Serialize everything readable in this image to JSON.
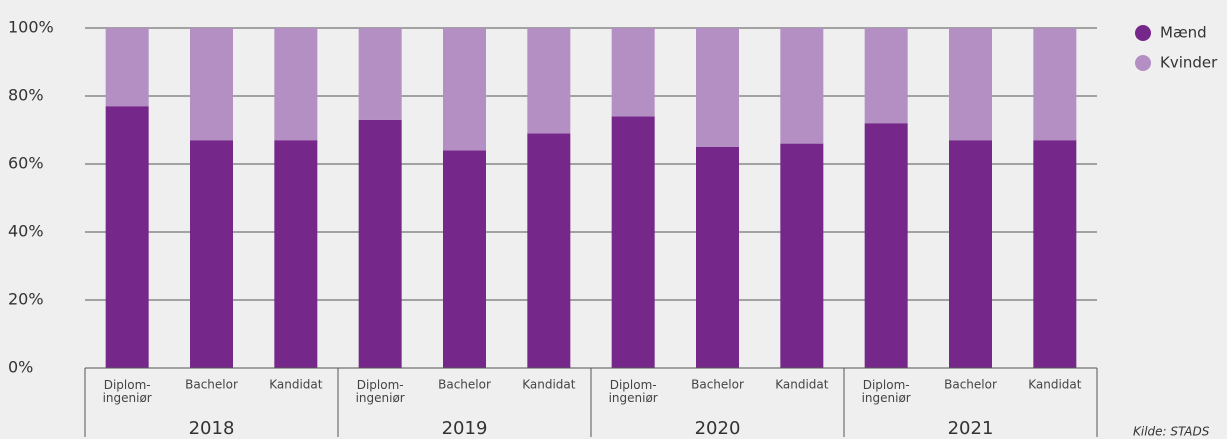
{
  "chart_data": {
    "type": "stacked_bar",
    "categories": [
      "Diplom-\ningeniør",
      "Bachelor",
      "Kandidat",
      "Diplom-\ningeniør",
      "Bachelor",
      "Kandidat",
      "Diplom-\ningeniør",
      "Bachelor",
      "Kandidat",
      "Diplom-\ningeniør",
      "Bachelor",
      "Kandidat"
    ],
    "groups": [
      "2018",
      "2019",
      "2020",
      "2021"
    ],
    "series": [
      {
        "name": "Mænd",
        "color": "#76288a",
        "values": [
          77,
          67,
          67,
          73,
          64,
          69,
          74,
          65,
          66,
          72,
          67,
          67
        ]
      },
      {
        "name": "Kvinder",
        "color": "#b48fc4",
        "values": [
          23,
          33,
          33,
          27,
          36,
          31,
          26,
          35,
          34,
          28,
          33,
          33
        ]
      }
    ],
    "ylim": [
      0,
      100
    ],
    "yticks": [
      {
        "value": 0,
        "label": "0%"
      },
      {
        "value": 20,
        "label": "20%"
      },
      {
        "value": 40,
        "label": "40%"
      },
      {
        "value": 60,
        "label": "60%"
      },
      {
        "value": 80,
        "label": "80%"
      },
      {
        "value": 100,
        "label": "100%"
      }
    ],
    "grid": true,
    "legend": "top-right",
    "source": "Kilde: STADS"
  }
}
